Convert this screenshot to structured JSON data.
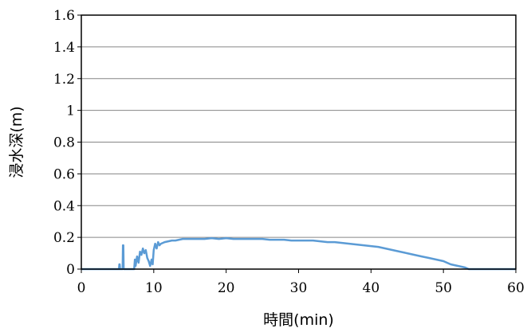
{
  "chart_data": {
    "type": "line",
    "xlabel": "時間(min)",
    "ylabel": "浸水深(m)",
    "xlim": [
      0,
      60
    ],
    "ylim": [
      0,
      1.6
    ],
    "x_ticks": [
      0,
      10,
      20,
      30,
      40,
      50,
      60
    ],
    "x_tick_labels": [
      "0",
      "10",
      "20",
      "30",
      "40",
      "50",
      "60"
    ],
    "y_ticks": [
      0,
      0.2,
      0.4,
      0.6,
      0.8,
      1.0,
      1.2,
      1.4,
      1.6
    ],
    "y_tick_labels": [
      "0",
      "0.2",
      "0.4",
      "0.6",
      "0.8",
      "1",
      "1.2",
      "1.4",
      "1.6"
    ],
    "grid": "horizontal",
    "legend": "none",
    "series": [
      {
        "color": "#5b9bd5",
        "x": [
          0,
          5.2,
          5.25,
          5.3,
          5.35,
          5.7,
          5.75,
          5.8,
          5.85,
          6.0,
          6.8,
          7.3,
          7.4,
          7.5,
          7.7,
          7.9,
          8.1,
          8.3,
          8.5,
          8.7,
          8.9,
          9.1,
          9.3,
          9.5,
          9.7,
          9.85,
          10.0,
          10.2,
          10.4,
          10.6,
          10.8,
          11.0,
          11.5,
          12.0,
          12.5,
          13.0,
          13.5,
          14.0,
          15.0,
          16.0,
          17.0,
          18.0,
          19.0,
          20.0,
          21.0,
          22.0,
          23.0,
          24.0,
          25.0,
          26.0,
          27.0,
          28.0,
          29.0,
          30.0,
          31.0,
          32.0,
          33.0,
          34.0,
          35.0,
          36.0,
          37.0,
          38.0,
          39.0,
          40.0,
          41.0,
          42.0,
          43.0,
          44.0,
          45.0,
          46.0,
          47.0,
          48.0,
          49.0,
          50.0,
          50.5,
          51.0,
          51.5,
          52.0,
          52.5,
          53.0,
          53.5,
          60
        ],
        "y": [
          0,
          0,
          0.03,
          0.03,
          0,
          0,
          0.15,
          0.15,
          0,
          0,
          0,
          0,
          0.06,
          0.02,
          0.08,
          0.04,
          0.11,
          0.09,
          0.13,
          0.1,
          0.12,
          0.07,
          0.05,
          0.02,
          0.06,
          0.03,
          0.12,
          0.16,
          0.13,
          0.17,
          0.15,
          0.16,
          0.17,
          0.175,
          0.18,
          0.18,
          0.185,
          0.19,
          0.19,
          0.19,
          0.19,
          0.195,
          0.19,
          0.195,
          0.19,
          0.19,
          0.19,
          0.19,
          0.19,
          0.185,
          0.185,
          0.185,
          0.18,
          0.18,
          0.18,
          0.18,
          0.175,
          0.17,
          0.17,
          0.165,
          0.16,
          0.155,
          0.15,
          0.145,
          0.14,
          0.13,
          0.12,
          0.11,
          0.1,
          0.09,
          0.08,
          0.07,
          0.06,
          0.05,
          0.04,
          0.03,
          0.025,
          0.02,
          0.015,
          0.01,
          0,
          0
        ]
      }
    ]
  }
}
